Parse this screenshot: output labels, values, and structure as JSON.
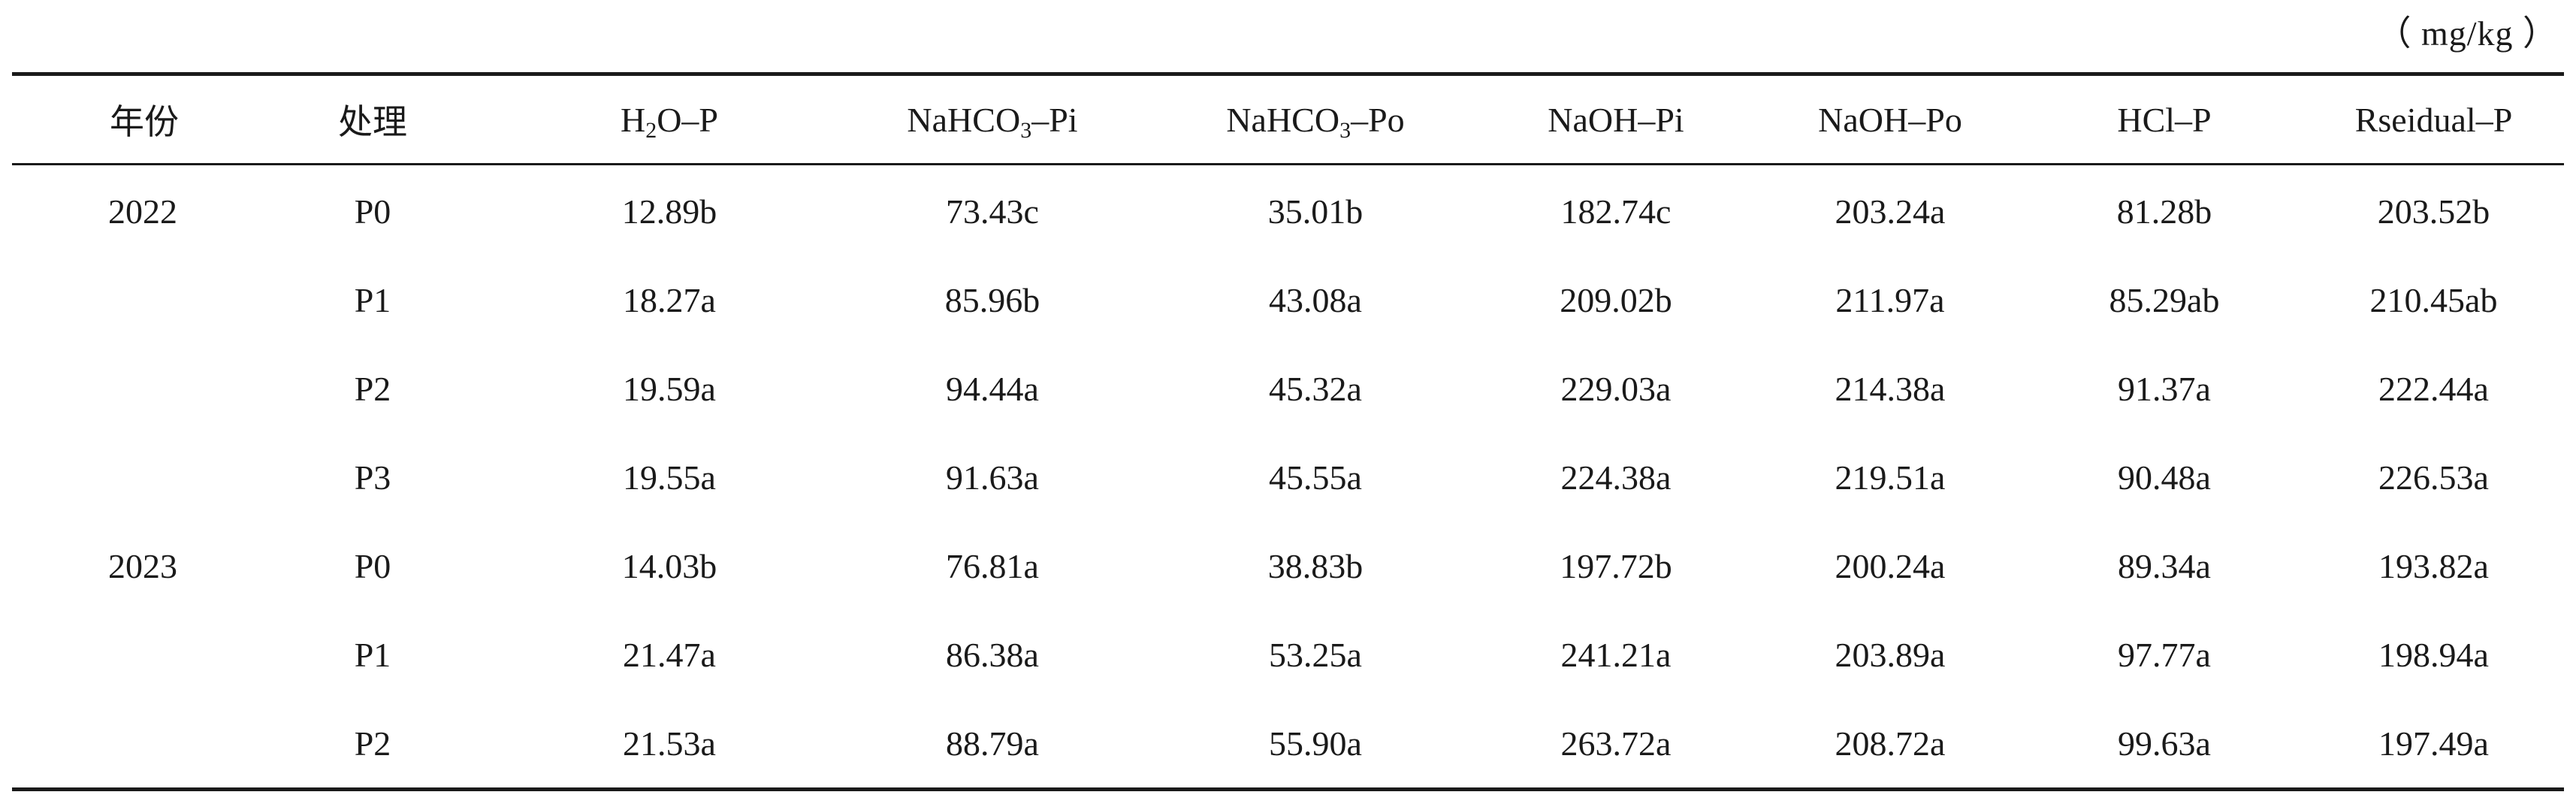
{
  "unit_label": "（ mg/kg ）",
  "headers": {
    "year": "年份",
    "treatment": "处理",
    "h2o_p": {
      "pre": "H",
      "sub": "2",
      "post": "O–P"
    },
    "nahco3_pi": {
      "pre": "NaHCO",
      "sub": "3",
      "post": "–Pi"
    },
    "nahco3_po": {
      "pre": "NaHCO",
      "sub": "3",
      "post": "–Po"
    },
    "naoh_pi": "NaOH–Pi",
    "naoh_po": "NaOH–Po",
    "hcl_p": "HCl–P",
    "residual_p": "Rseidual–P"
  },
  "rows": [
    {
      "year": "2022",
      "treatment": "P0",
      "values": [
        "12.89b",
        "73.43c",
        "35.01b",
        "182.74c",
        "203.24a",
        "81.28b",
        "203.52b"
      ]
    },
    {
      "year": "",
      "treatment": "P1",
      "values": [
        "18.27a",
        "85.96b",
        "43.08a",
        "209.02b",
        "211.97a",
        "85.29ab",
        "210.45ab"
      ]
    },
    {
      "year": "",
      "treatment": "P2",
      "values": [
        "19.59a",
        "94.44a",
        "45.32a",
        "229.03a",
        "214.38a",
        "91.37a",
        "222.44a"
      ]
    },
    {
      "year": "",
      "treatment": "P3",
      "values": [
        "19.55a",
        "91.63a",
        "45.55a",
        "224.38a",
        "219.51a",
        "90.48a",
        "226.53a"
      ]
    },
    {
      "year": "2023",
      "treatment": "P0",
      "values": [
        "14.03b",
        "76.81a",
        "38.83b",
        "197.72b",
        "200.24a",
        "89.34a",
        "193.82a"
      ]
    },
    {
      "year": "",
      "treatment": "P1",
      "values": [
        "21.47a",
        "86.38a",
        "53.25a",
        "241.21a",
        "203.89a",
        "97.77a",
        "198.94a"
      ]
    },
    {
      "year": "",
      "treatment": "P2",
      "values": [
        "21.53a",
        "88.79a",
        "55.90a",
        "263.72a",
        "208.72a",
        "99.63a",
        "197.49a"
      ]
    }
  ]
}
